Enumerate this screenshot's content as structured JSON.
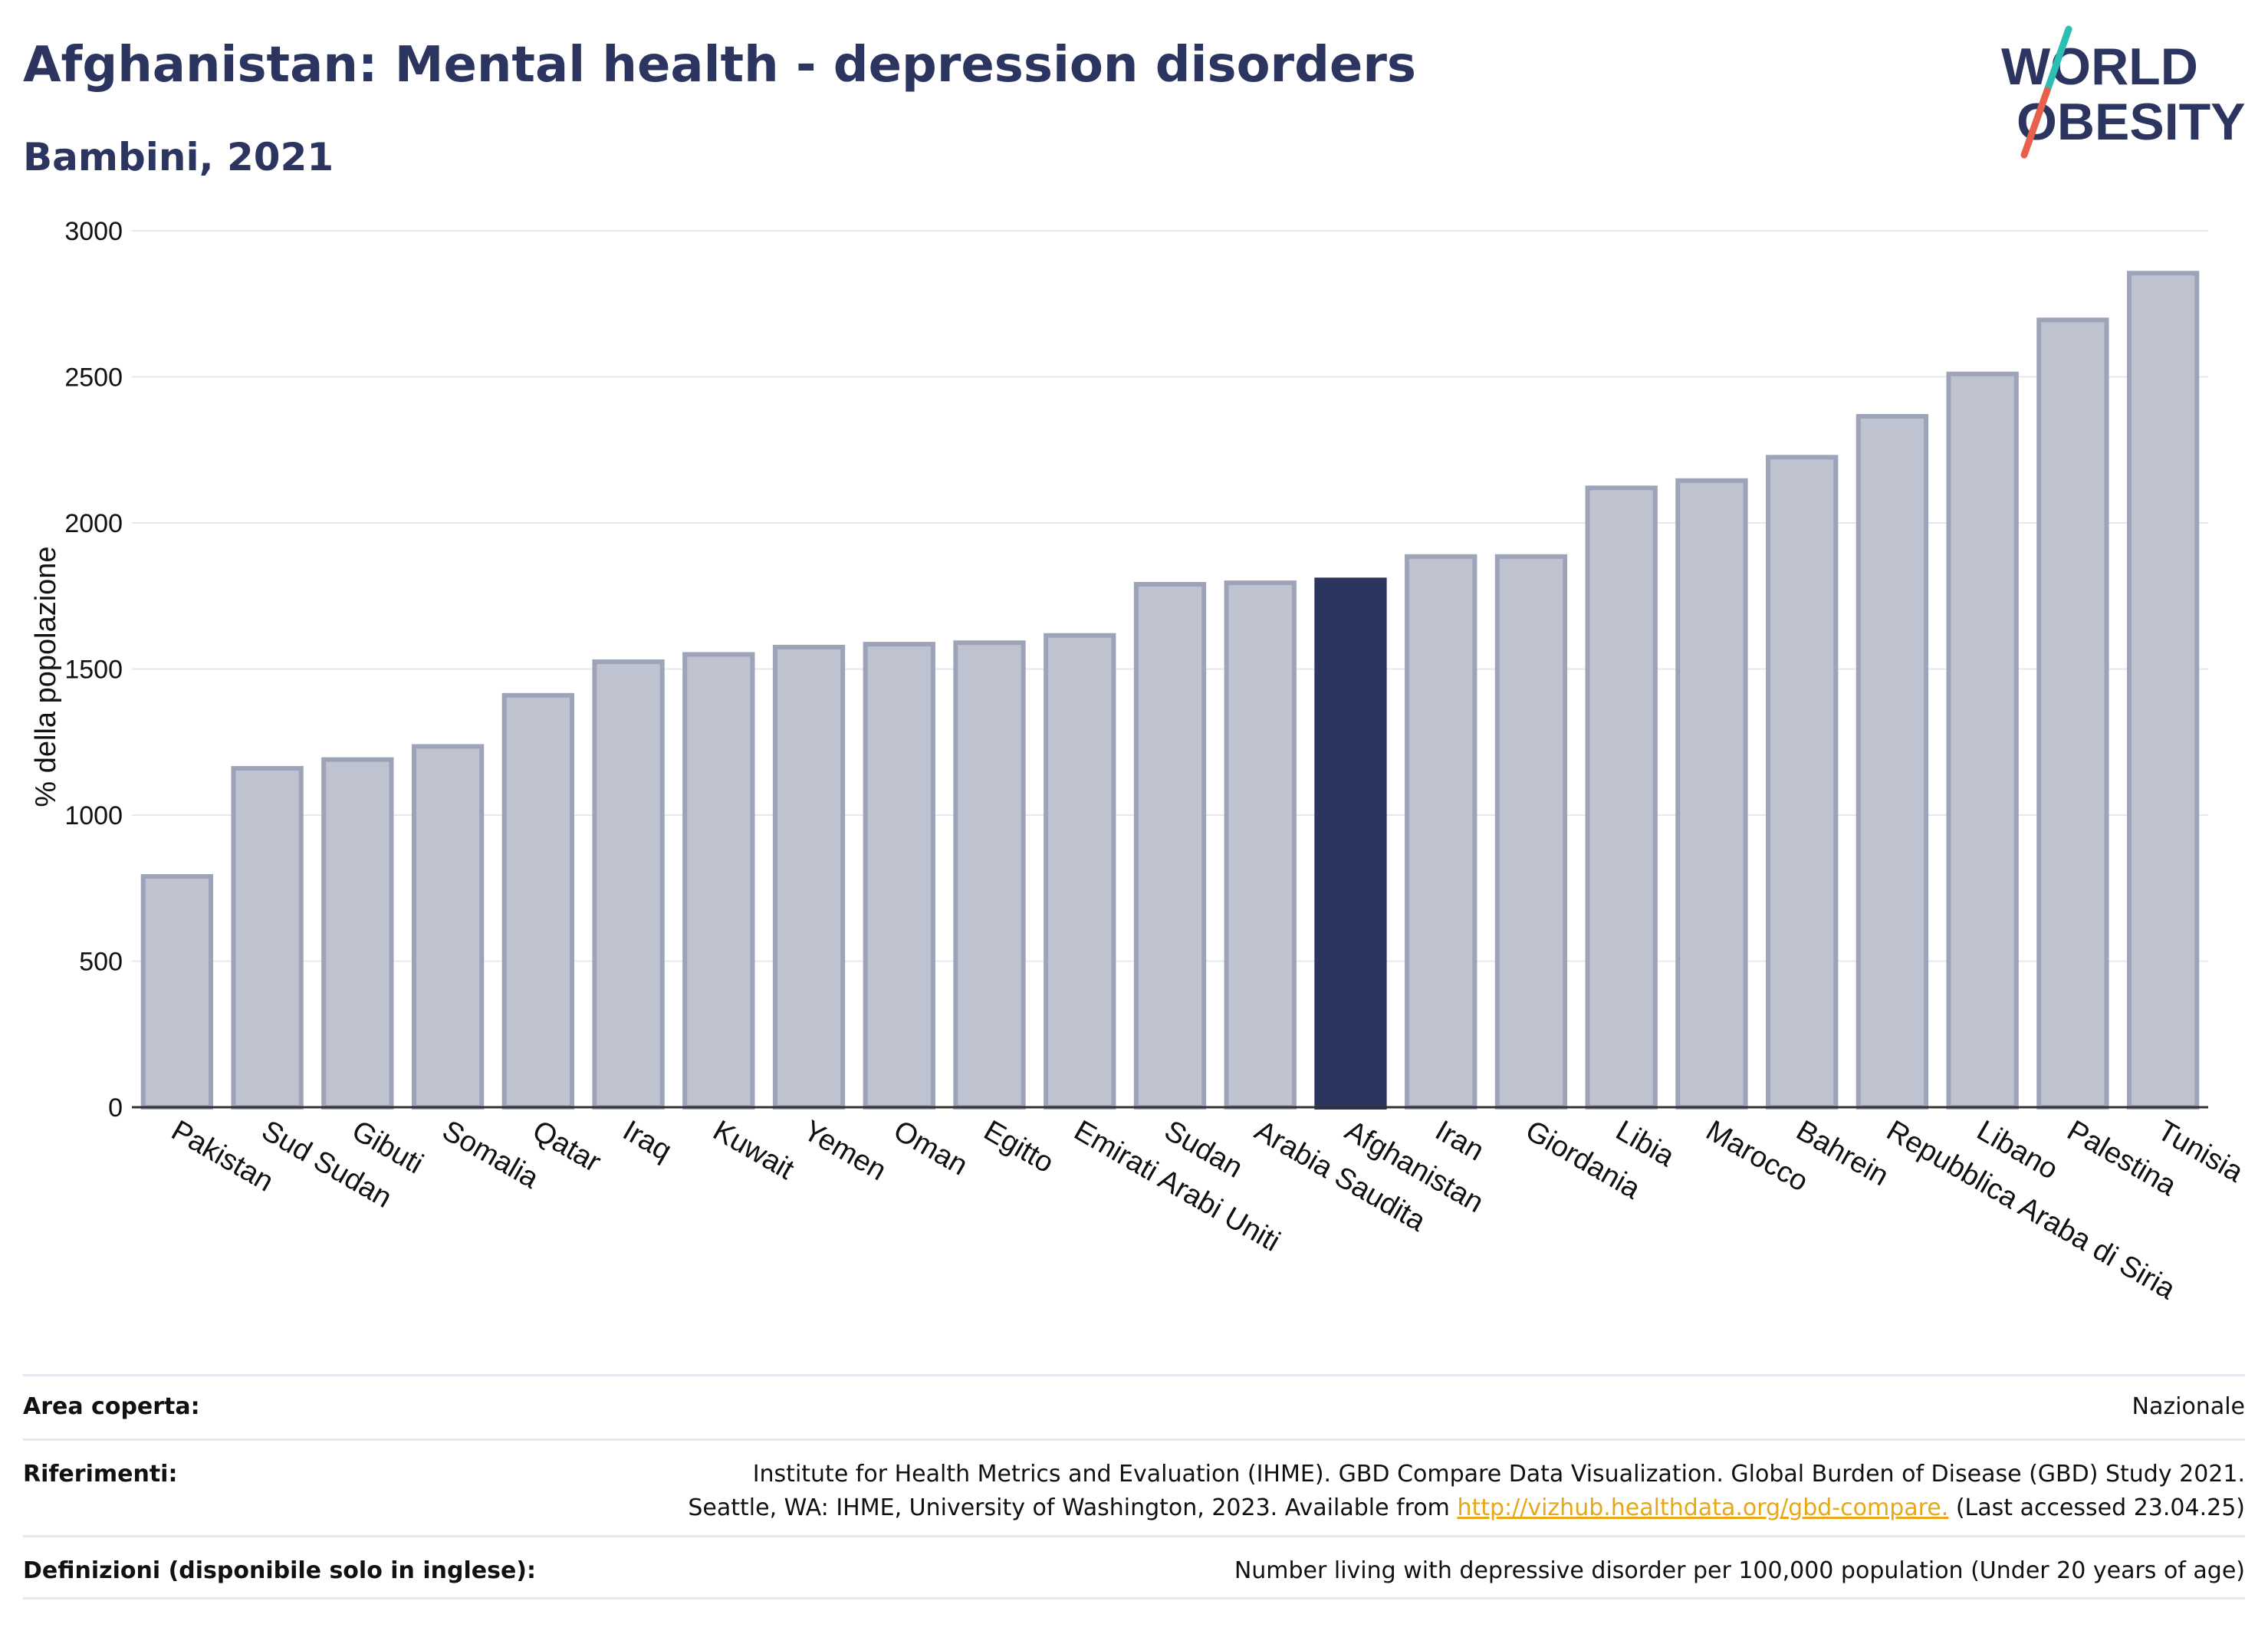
{
  "title": "Afghanistan: Mental health - depression disorders",
  "subtitle": "Bambini, 2021",
  "logo": {
    "line1": "WORLD",
    "line2": "OBESITY"
  },
  "colors": {
    "highlight": "#2b355f",
    "bar": "#bfc3d0",
    "bar_border": "#9da3b8",
    "grid": "#e6e8ee",
    "link": "#e6a817"
  },
  "chart_data": {
    "type": "bar",
    "ylabel": "% della popolazione",
    "ylim": [
      0,
      3000
    ],
    "yticks": [
      0,
      500,
      1000,
      1500,
      2000,
      2500,
      3000
    ],
    "grid": true,
    "highlight": "Afghanistan",
    "categories": [
      "Pakistan",
      "Sud Sudan",
      "Gibuti",
      "Somalia",
      "Qatar",
      "Iraq",
      "Kuwait",
      "Yemen",
      "Oman",
      "Egitto",
      "Emirati Arabi Uniti",
      "Sudan",
      "Arabia Saudita",
      "Afghanistan",
      "Iran",
      "Giordania",
      "Libia",
      "Marocco",
      "Bahrein",
      "Repubblica Araba di Siria",
      "Libano",
      "Palestina",
      "Tunisia"
    ],
    "values": [
      790,
      1160,
      1190,
      1235,
      1410,
      1525,
      1550,
      1575,
      1585,
      1590,
      1615,
      1790,
      1795,
      1805,
      1885,
      1885,
      2120,
      2145,
      2225,
      2365,
      2510,
      2695,
      2855
    ]
  },
  "footer": {
    "area_label": "Area coperta:",
    "area_value": "Nazionale",
    "refs_label": "Riferimenti:",
    "refs_line1": "Institute for Health Metrics and Evaluation (IHME). GBD Compare Data Visualization. Global Burden of Disease (GBD) Study 2021.",
    "refs_line2_pre": "Seattle, WA: IHME, University of Washington, 2023. Available from ",
    "refs_link": "http://vizhub.healthdata.org/gbd-compare.",
    "refs_line2_post": " (Last accessed 23.04.25)",
    "defs_label": "Definizioni (disponibile solo in inglese):",
    "defs_value": "Number living with depressive disorder per 100,000 population (Under 20 years of age)"
  }
}
